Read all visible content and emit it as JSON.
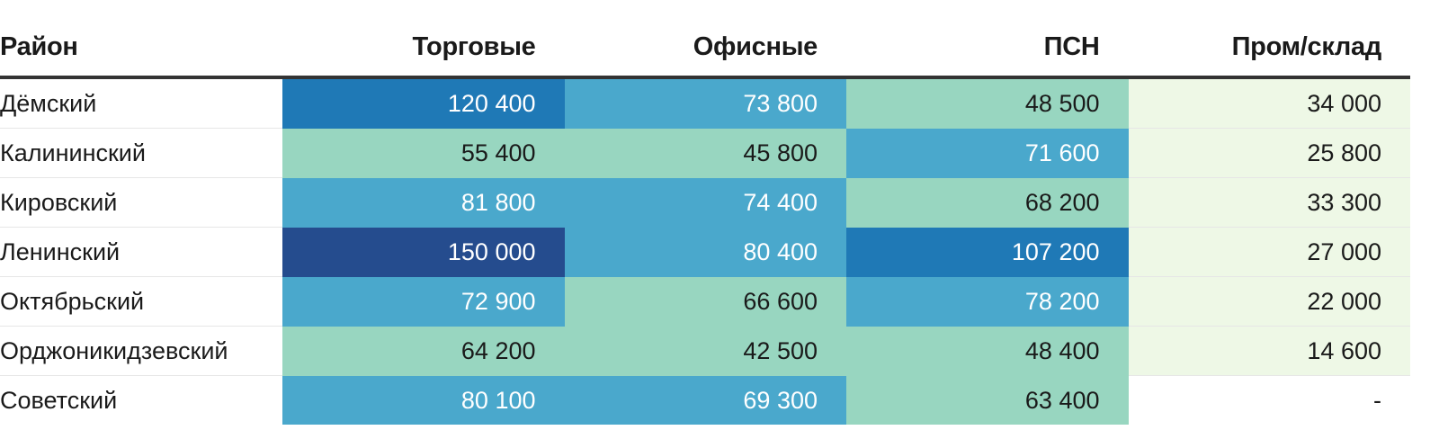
{
  "chart_data": {
    "type": "table",
    "columns": [
      "Район",
      "Торговые",
      "Офисные",
      "ПСН",
      "Пром/склад"
    ],
    "rows": [
      {
        "district": "Дёмский",
        "values": [
          "120 400",
          "73 800",
          "48 500",
          "34 000"
        ],
        "levels": [
          3,
          2,
          1,
          0
        ]
      },
      {
        "district": "Калининский",
        "values": [
          "55 400",
          "45 800",
          "71 600",
          "25 800"
        ],
        "levels": [
          1,
          1,
          2,
          0
        ]
      },
      {
        "district": "Кировский",
        "values": [
          "81 800",
          "74 400",
          "68 200",
          "33 300"
        ],
        "levels": [
          2,
          2,
          1,
          0
        ]
      },
      {
        "district": "Ленинский",
        "values": [
          "150 000",
          "80 400",
          "107 200",
          "27 000"
        ],
        "levels": [
          4,
          2,
          3,
          0
        ]
      },
      {
        "district": "Октябрьский",
        "values": [
          "72 900",
          "66 600",
          "78 200",
          "22 000"
        ],
        "levels": [
          2,
          1,
          2,
          0
        ]
      },
      {
        "district": "Орджоникидзевский",
        "values": [
          "64 200",
          "42 500",
          "48 400",
          "14 600"
        ],
        "levels": [
          1,
          1,
          1,
          0
        ]
      },
      {
        "district": "Советский",
        "values": [
          "80 100",
          "69 300",
          "63 400",
          "-"
        ],
        "levels": [
          2,
          2,
          1,
          null
        ]
      }
    ],
    "palette": [
      "#eef8e6",
      "#98d6c0",
      "#4aa8cc",
      "#1f79b6",
      "#254c8e"
    ]
  }
}
